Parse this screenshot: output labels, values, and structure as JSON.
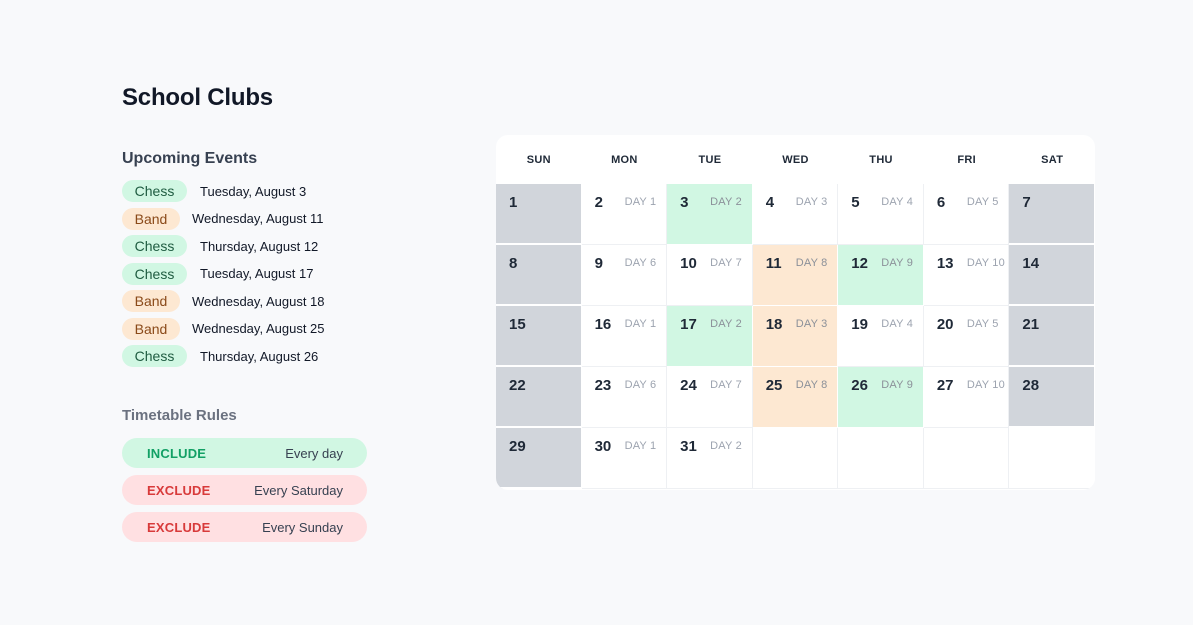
{
  "title": "School Clubs",
  "upcoming_events": {
    "heading": "Upcoming Events",
    "items": [
      {
        "club": "Chess",
        "type": "chess",
        "date": "Tuesday, August 3"
      },
      {
        "club": "Band",
        "type": "band",
        "date": "Wednesday, August 11"
      },
      {
        "club": "Chess",
        "type": "chess",
        "date": "Thursday, August 12"
      },
      {
        "club": "Chess",
        "type": "chess",
        "date": "Tuesday, August 17"
      },
      {
        "club": "Band",
        "type": "band",
        "date": "Wednesday, August 18"
      },
      {
        "club": "Band",
        "type": "band",
        "date": "Wednesday, August 25"
      },
      {
        "club": "Chess",
        "type": "chess",
        "date": "Thursday, August 26"
      }
    ]
  },
  "timetable_rules": {
    "heading": "Timetable Rules",
    "items": [
      {
        "type": "INCLUDE",
        "target": "Every day"
      },
      {
        "type": "EXCLUDE",
        "target": "Every Saturday"
      },
      {
        "type": "EXCLUDE",
        "target": "Every Sunday"
      }
    ]
  },
  "calendar": {
    "weekdays": [
      "SUN",
      "MON",
      "TUE",
      "WED",
      "THU",
      "FRI",
      "SAT"
    ],
    "cells": [
      {
        "day": "1",
        "label": "",
        "kind": "weekend"
      },
      {
        "day": "2",
        "label": "DAY 1",
        "kind": "normal"
      },
      {
        "day": "3",
        "label": "DAY 2",
        "kind": "chess"
      },
      {
        "day": "4",
        "label": "DAY 3",
        "kind": "normal"
      },
      {
        "day": "5",
        "label": "DAY 4",
        "kind": "normal"
      },
      {
        "day": "6",
        "label": "DAY 5",
        "kind": "normal"
      },
      {
        "day": "7",
        "label": "",
        "kind": "weekend"
      },
      {
        "day": "8",
        "label": "",
        "kind": "weekend"
      },
      {
        "day": "9",
        "label": "DAY 6",
        "kind": "normal"
      },
      {
        "day": "10",
        "label": "DAY 7",
        "kind": "normal"
      },
      {
        "day": "11",
        "label": "DAY 8",
        "kind": "band"
      },
      {
        "day": "12",
        "label": "DAY 9",
        "kind": "chess"
      },
      {
        "day": "13",
        "label": "DAY 10",
        "kind": "normal"
      },
      {
        "day": "14",
        "label": "",
        "kind": "weekend"
      },
      {
        "day": "15",
        "label": "",
        "kind": "weekend"
      },
      {
        "day": "16",
        "label": "DAY 1",
        "kind": "normal"
      },
      {
        "day": "17",
        "label": "DAY 2",
        "kind": "chess"
      },
      {
        "day": "18",
        "label": "DAY 3",
        "kind": "band"
      },
      {
        "day": "19",
        "label": "DAY 4",
        "kind": "normal"
      },
      {
        "day": "20",
        "label": "DAY 5",
        "kind": "normal"
      },
      {
        "day": "21",
        "label": "",
        "kind": "weekend"
      },
      {
        "day": "22",
        "label": "",
        "kind": "weekend"
      },
      {
        "day": "23",
        "label": "DAY 6",
        "kind": "normal"
      },
      {
        "day": "24",
        "label": "DAY 7",
        "kind": "normal"
      },
      {
        "day": "25",
        "label": "DAY 8",
        "kind": "band"
      },
      {
        "day": "26",
        "label": "DAY 9",
        "kind": "chess"
      },
      {
        "day": "27",
        "label": "DAY 10",
        "kind": "normal"
      },
      {
        "day": "28",
        "label": "",
        "kind": "weekend"
      },
      {
        "day": "29",
        "label": "",
        "kind": "weekend"
      },
      {
        "day": "30",
        "label": "DAY 1",
        "kind": "normal"
      },
      {
        "day": "31",
        "label": "DAY 2",
        "kind": "normal"
      },
      {
        "day": "",
        "label": "",
        "kind": "empty"
      },
      {
        "day": "",
        "label": "",
        "kind": "empty"
      },
      {
        "day": "",
        "label": "",
        "kind": "empty"
      },
      {
        "day": "",
        "label": "",
        "kind": "empty"
      }
    ]
  },
  "colors": {
    "chess": "#d1f7e3",
    "band": "#fde8d2",
    "weekend": "#d1d5db",
    "include_text": "#12a065",
    "exclude_text": "#d83a3a",
    "exclude_bg": "#ffe0e2"
  }
}
